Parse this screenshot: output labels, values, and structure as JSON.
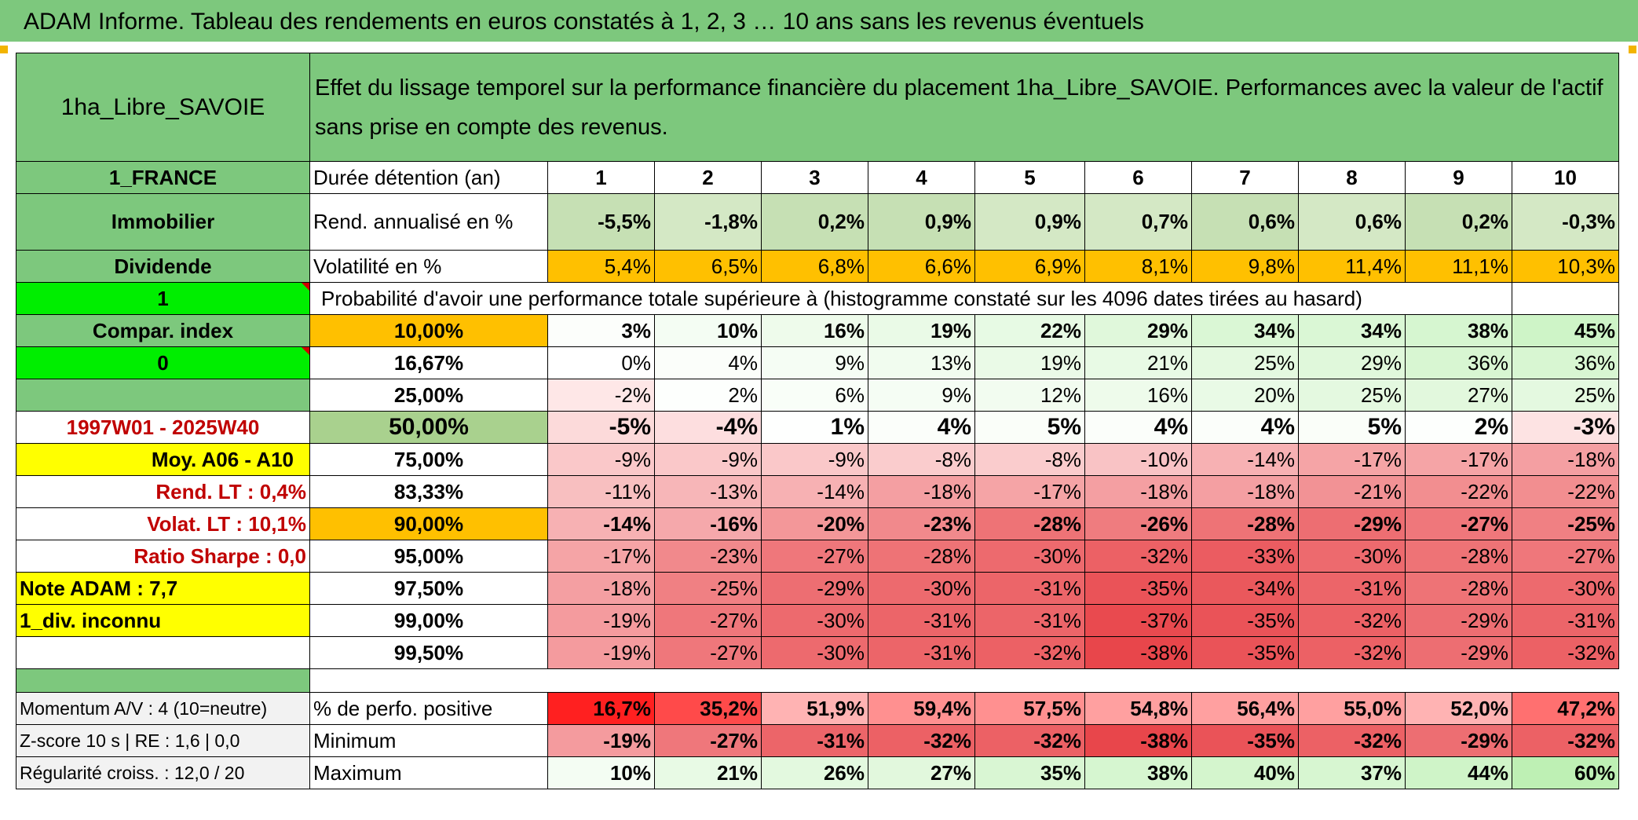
{
  "title": "ADAM Informe. Tableau des rendements en euros constatés à 1, 2, 3 … 10 ans sans les revenus éventuels",
  "colors": {
    "green_header": "#7dc87d",
    "bright_green": "#00ee00",
    "yellow": "#ffff00",
    "orange": "#ffc000",
    "light_green": "#c6e0b4",
    "red_label": "#c00000"
  },
  "left": {
    "asset": "1ha_Libre_SAVOIE",
    "country": "1_FRANCE",
    "category": "Immobilier",
    "type": "Dividende",
    "cell_1": "1",
    "compar_index": "Compar. index",
    "cell_0": "0",
    "period": "1997W01 - 2025W40",
    "moy": "Moy. A06 - A10",
    "rend_lt": "Rend. LT :   0,4%",
    "volat_lt": "Volat. LT :   10,1%",
    "sharpe": "Ratio Sharpe :   0,0",
    "note": "Note ADAM : 7,7",
    "div": "1_div. inconnu",
    "momentum": "Momentum A/V : 4 (10=neutre)",
    "zscore": "Z-score 10 s | RE : 1,6 | 0,0",
    "regularite": "Régularité croiss. : 12,0 / 20"
  },
  "header_desc": "Effet du lissage temporel sur la performance financière du placement 1ha_Libre_SAVOIE. Performances avec la valeur de l'actif sans prise en compte des revenus.",
  "labels": {
    "duree": "Durée détention (an)",
    "rend": "Rend. annualisé en %",
    "volat": "Volatilité en %",
    "proba": "Probabilité d'avoir une performance totale supérieure à (histogramme constaté sur les 4096 dates tirées au hasard)",
    "perf_pos": "% de perfo. positive",
    "minimum": "Minimum",
    "maximum": "Maximum"
  },
  "years": [
    "1",
    "2",
    "3",
    "4",
    "5",
    "6",
    "7",
    "8",
    "9",
    "10"
  ],
  "rend": [
    "-5,5%",
    "-1,8%",
    "0,2%",
    "0,9%",
    "0,9%",
    "0,7%",
    "0,6%",
    "0,6%",
    "0,2%",
    "-0,3%"
  ],
  "volat": [
    "5,4%",
    "6,5%",
    "6,8%",
    "6,6%",
    "6,9%",
    "8,1%",
    "9,8%",
    "11,4%",
    "11,1%",
    "10,3%"
  ],
  "prob_rows": [
    {
      "pct": "10,00%",
      "vals": [
        "3%",
        "10%",
        "16%",
        "19%",
        "22%",
        "29%",
        "34%",
        "34%",
        "38%",
        "45%"
      ]
    },
    {
      "pct": "16,67%",
      "vals": [
        "0%",
        "4%",
        "9%",
        "13%",
        "19%",
        "21%",
        "25%",
        "29%",
        "36%",
        "36%"
      ]
    },
    {
      "pct": "25,00%",
      "vals": [
        "-2%",
        "2%",
        "6%",
        "9%",
        "12%",
        "16%",
        "20%",
        "25%",
        "27%",
        "25%"
      ]
    },
    {
      "pct": "50,00%",
      "vals": [
        "-5%",
        "-4%",
        "1%",
        "4%",
        "5%",
        "4%",
        "4%",
        "5%",
        "2%",
        "-3%"
      ]
    },
    {
      "pct": "75,00%",
      "vals": [
        "-9%",
        "-9%",
        "-9%",
        "-8%",
        "-8%",
        "-10%",
        "-14%",
        "-17%",
        "-17%",
        "-18%"
      ]
    },
    {
      "pct": "83,33%",
      "vals": [
        "-11%",
        "-13%",
        "-14%",
        "-18%",
        "-17%",
        "-18%",
        "-18%",
        "-21%",
        "-22%",
        "-22%"
      ]
    },
    {
      "pct": "90,00%",
      "vals": [
        "-14%",
        "-16%",
        "-20%",
        "-23%",
        "-28%",
        "-26%",
        "-28%",
        "-29%",
        "-27%",
        "-25%"
      ]
    },
    {
      "pct": "95,00%",
      "vals": [
        "-17%",
        "-23%",
        "-27%",
        "-28%",
        "-30%",
        "-32%",
        "-33%",
        "-30%",
        "-28%",
        "-27%"
      ]
    },
    {
      "pct": "97,50%",
      "vals": [
        "-18%",
        "-25%",
        "-29%",
        "-30%",
        "-31%",
        "-35%",
        "-34%",
        "-31%",
        "-28%",
        "-30%"
      ]
    },
    {
      "pct": "99,00%",
      "vals": [
        "-19%",
        "-27%",
        "-30%",
        "-31%",
        "-31%",
        "-37%",
        "-35%",
        "-32%",
        "-29%",
        "-31%"
      ]
    },
    {
      "pct": "99,50%",
      "vals": [
        "-19%",
        "-27%",
        "-30%",
        "-31%",
        "-32%",
        "-38%",
        "-35%",
        "-32%",
        "-29%",
        "-32%"
      ]
    }
  ],
  "perf_pos": [
    "16,7%",
    "35,2%",
    "51,9%",
    "59,4%",
    "57,5%",
    "54,8%",
    "56,4%",
    "55,0%",
    "52,0%",
    "47,2%"
  ],
  "minimum": [
    "-19%",
    "-27%",
    "-31%",
    "-32%",
    "-32%",
    "-38%",
    "-35%",
    "-32%",
    "-29%",
    "-32%"
  ],
  "maximum": [
    "10%",
    "21%",
    "26%",
    "27%",
    "35%",
    "38%",
    "40%",
    "37%",
    "44%",
    "60%"
  ]
}
